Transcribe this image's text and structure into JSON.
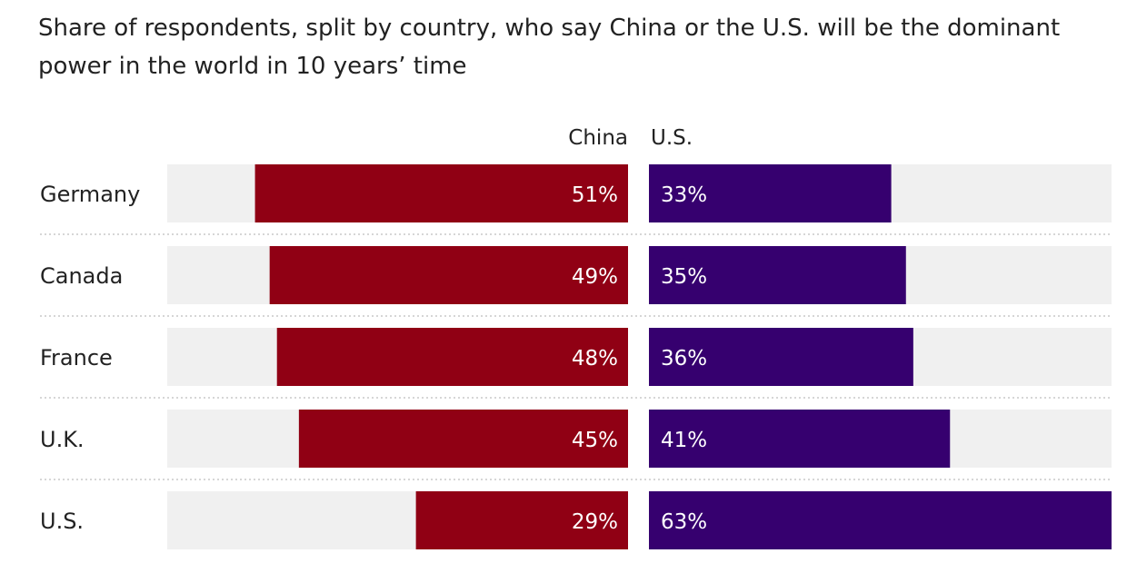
{
  "title": "Share of respondents, split by country, who say China or the U.S. will be the dominant power in the world in 10 years’ time",
  "chart_data": {
    "type": "bar",
    "orientation": "horizontal-diverging",
    "categories": [
      "Germany",
      "Canada",
      "France",
      "U.K.",
      "U.S."
    ],
    "series": [
      {
        "name": "China",
        "values": [
          51,
          49,
          48,
          45,
          29
        ],
        "labels": [
          "51%",
          "49%",
          "48%",
          "45%",
          "29%"
        ],
        "color": "#900014"
      },
      {
        "name": "U.S.",
        "values": [
          33,
          35,
          36,
          41,
          63
        ],
        "labels": [
          "33%",
          "35%",
          "36%",
          "41%",
          "63%"
        ],
        "color": "#36006f"
      }
    ],
    "xlim": [
      0,
      63
    ],
    "unit": "%",
    "track_color": "#f0f0f0",
    "separator_style": "dotted",
    "legend": "top-center, as column headers"
  }
}
